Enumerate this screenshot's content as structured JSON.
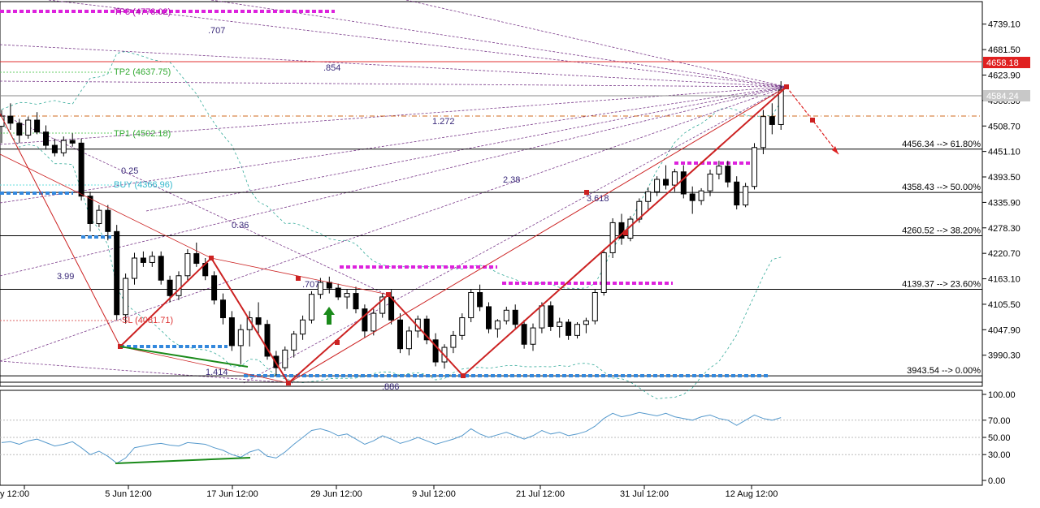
{
  "chart_data": {
    "type": "candlestick",
    "price_axis": {
      "min": 3920,
      "max": 4790,
      "ticks": [
        "4739.10",
        "4681.50",
        "4623.90",
        "4566.30",
        "4508.70",
        "4451.10",
        "4393.50",
        "4335.90",
        "4278.30",
        "4220.70",
        "4163.10",
        "4105.50",
        "4047.90",
        "3990.30"
      ],
      "current_price": "4584.24",
      "alert_price": "4658.18"
    },
    "time_axis": {
      "labels": [
        "y 12:00",
        "5 Jun 12:00",
        "17 Jun 12:00",
        "29 Jun 12:00",
        "9 Jul 12:00",
        "21 Jul 12:00",
        "31 Jul 12:00",
        "12 Aug 12:00"
      ]
    },
    "fib_levels": [
      {
        "price": 4456.34,
        "label": "4456.34 --> 61.80%"
      },
      {
        "price": 4358.43,
        "label": "4358.43 --> 50.00%"
      },
      {
        "price": 4260.52,
        "label": "4260.52 --> 38.20%"
      },
      {
        "price": 4139.37,
        "label": "4139.37 --> 23.60%"
      },
      {
        "price": 3943.54,
        "label": "3943.54 --> 0.00%"
      }
    ],
    "trade_labels": {
      "tp3": "TP3 (4773.02)",
      "tp2": "TP2 (4637.75)",
      "tp1": "TP1 (4502.18)",
      "buy": "BUY (4366.96)",
      "sl": "SL (4081.71)"
    },
    "ratio_labels": [
      ".707",
      ".854",
      "1.272",
      "0.25",
      "2.38",
      "3.618",
      "0.36",
      "3.99",
      ".707",
      "1.414",
      ".886"
    ],
    "candles": [
      [
        4508,
        4545,
        4470,
        4531
      ],
      [
        4531,
        4560,
        4500,
        4515
      ],
      [
        4515,
        4525,
        4470,
        4488
      ],
      [
        4488,
        4530,
        4480,
        4522
      ],
      [
        4522,
        4540,
        4490,
        4495
      ],
      [
        4495,
        4510,
        4455,
        4465
      ],
      [
        4465,
        4480,
        4440,
        4448
      ],
      [
        4448,
        4485,
        4440,
        4476
      ],
      [
        4476,
        4492,
        4462,
        4470
      ],
      [
        4470,
        4480,
        4340,
        4350
      ],
      [
        4350,
        4360,
        4270,
        4288
      ],
      [
        4288,
        4330,
        4280,
        4318
      ],
      [
        4318,
        4330,
        4250,
        4270
      ],
      [
        4270,
        4285,
        4070,
        4082
      ],
      [
        4082,
        4175,
        4062,
        4164
      ],
      [
        4164,
        4222,
        4150,
        4210
      ],
      [
        4210,
        4225,
        4190,
        4200
      ],
      [
        4200,
        4225,
        4190,
        4214
      ],
      [
        4214,
        4225,
        4150,
        4160
      ],
      [
        4160,
        4170,
        4110,
        4125
      ],
      [
        4125,
        4180,
        4115,
        4170
      ],
      [
        4170,
        4230,
        4160,
        4220
      ],
      [
        4220,
        4245,
        4190,
        4198
      ],
      [
        4198,
        4210,
        4160,
        4170
      ],
      [
        4170,
        4180,
        4105,
        4115
      ],
      [
        4115,
        4130,
        4060,
        4075
      ],
      [
        4075,
        4090,
        4000,
        4012
      ],
      [
        4012,
        4060,
        3970,
        4048
      ],
      [
        4048,
        4090,
        4010,
        4075
      ],
      [
        4075,
        4110,
        4040,
        4060
      ],
      [
        4060,
        4070,
        3980,
        3988
      ],
      [
        3988,
        4000,
        3945,
        3962
      ],
      [
        3962,
        4010,
        3955,
        4002
      ],
      [
        4002,
        4045,
        3985,
        4038
      ],
      [
        4038,
        4080,
        4025,
        4070
      ],
      [
        4070,
        4135,
        4062,
        4128
      ],
      [
        4128,
        4165,
        4118,
        4155
      ],
      [
        4155,
        4168,
        4130,
        4142
      ],
      [
        4142,
        4152,
        4115,
        4122
      ],
      [
        4122,
        4140,
        4095,
        4130
      ],
      [
        4130,
        4145,
        4085,
        4095
      ],
      [
        4095,
        4105,
        4030,
        4045
      ],
      [
        4045,
        4095,
        4035,
        4085
      ],
      [
        4085,
        4130,
        4075,
        4122
      ],
      [
        4122,
        4138,
        4060,
        4070
      ],
      [
        4070,
        4085,
        3995,
        4005
      ],
      [
        4005,
        4055,
        3990,
        4045
      ],
      [
        4045,
        4080,
        4030,
        4072
      ],
      [
        4072,
        4080,
        4015,
        4025
      ],
      [
        4025,
        4040,
        3965,
        3975
      ],
      [
        3975,
        4015,
        3960,
        4008
      ],
      [
        4008,
        4045,
        3995,
        4035
      ],
      [
        4035,
        4085,
        4025,
        4075
      ],
      [
        4075,
        4140,
        4065,
        4132
      ],
      [
        4132,
        4150,
        4090,
        4100
      ],
      [
        4100,
        4110,
        4040,
        4050
      ],
      [
        4050,
        4072,
        4030,
        4068
      ],
      [
        4068,
        4100,
        4060,
        4092
      ],
      [
        4092,
        4105,
        4050,
        4060
      ],
      [
        4060,
        4070,
        4005,
        4015
      ],
      [
        4015,
        4062,
        4000,
        4052
      ],
      [
        4052,
        4110,
        4040,
        4102
      ],
      [
        4102,
        4112,
        4045,
        4055
      ],
      [
        4055,
        4075,
        4030,
        4065
      ],
      [
        4065,
        4072,
        4025,
        4035
      ],
      [
        4035,
        4065,
        4028,
        4060
      ],
      [
        4060,
        4075,
        4040,
        4068
      ],
      [
        4068,
        4140,
        4060,
        4132
      ],
      [
        4132,
        4230,
        4125,
        4222
      ],
      [
        4222,
        4300,
        4210,
        4290
      ],
      [
        4290,
        4310,
        4240,
        4255
      ],
      [
        4255,
        4305,
        4248,
        4298
      ],
      [
        4298,
        4345,
        4290,
        4338
      ],
      [
        4338,
        4370,
        4320,
        4360
      ],
      [
        4360,
        4395,
        4350,
        4388
      ],
      [
        4388,
        4420,
        4365,
        4375
      ],
      [
        4375,
        4412,
        4360,
        4405
      ],
      [
        4405,
        4420,
        4345,
        4355
      ],
      [
        4355,
        4372,
        4310,
        4340
      ],
      [
        4340,
        4368,
        4330,
        4362
      ],
      [
        4362,
        4410,
        4350,
        4400
      ],
      [
        4400,
        4430,
        4388,
        4418
      ],
      [
        4418,
        4430,
        4370,
        4382
      ],
      [
        4382,
        4395,
        4320,
        4330
      ],
      [
        4330,
        4380,
        4325,
        4372
      ],
      [
        4372,
        4470,
        4365,
        4460
      ],
      [
        4460,
        4545,
        4445,
        4530
      ],
      [
        4530,
        4560,
        4490,
        4512
      ],
      [
        4512,
        4610,
        4500,
        4590
      ]
    ],
    "rsi": {
      "axis_ticks": [
        "100.00",
        "70.00",
        "50.00",
        "30.00",
        "0.00"
      ],
      "values": [
        44,
        45,
        42,
        46,
        48,
        44,
        40,
        42,
        45,
        38,
        30,
        34,
        28,
        20,
        26,
        38,
        40,
        42,
        43,
        41,
        40,
        44,
        43,
        42,
        38,
        35,
        30,
        27,
        33,
        36,
        28,
        26,
        33,
        42,
        50,
        58,
        60,
        57,
        52,
        54,
        48,
        42,
        46,
        52,
        48,
        43,
        46,
        50,
        46,
        42,
        45,
        48,
        52,
        60,
        54,
        50,
        53,
        56,
        52,
        48,
        52,
        58,
        54,
        56,
        52,
        54,
        57,
        63,
        72,
        78,
        74,
        76,
        79,
        77,
        75,
        78,
        74,
        72,
        70,
        74,
        76,
        72,
        70,
        64,
        70,
        76,
        72,
        70,
        73
      ]
    }
  }
}
